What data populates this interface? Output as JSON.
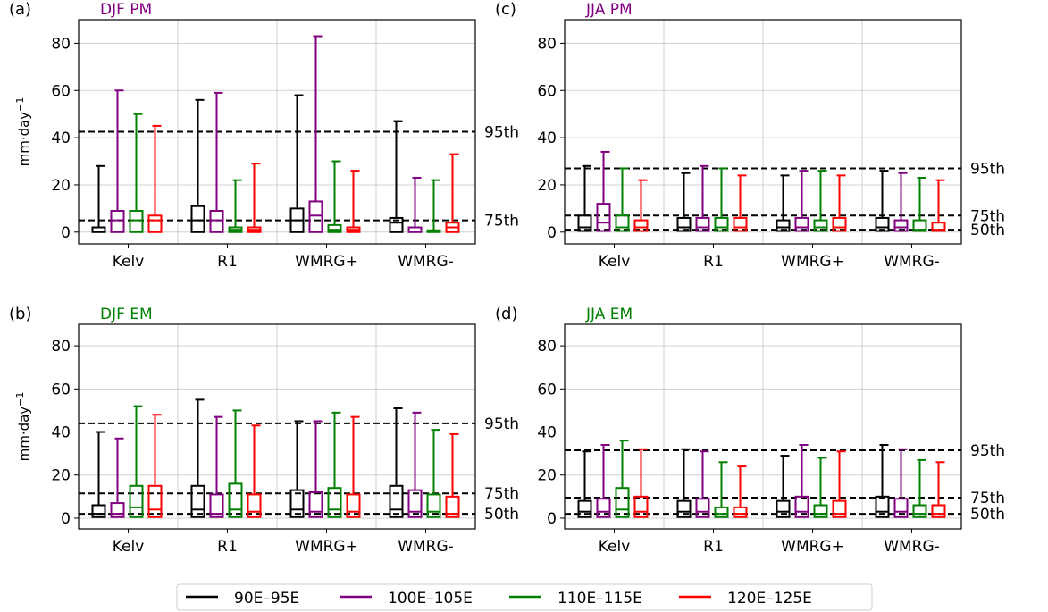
{
  "figure": {
    "ylabel": "mm·day",
    "ylabel_sup": "−1",
    "colors": {
      "90E–95E": "#000000",
      "100E–105E": "#800080",
      "110E–115E": "#008000",
      "120E–125E": "#ff0000"
    },
    "legend": {
      "placement": "bottom-center",
      "entries": [
        "90E–95E",
        "100E–105E",
        "110E–115E",
        "120E–125E"
      ]
    }
  },
  "chart_data": [
    {
      "type": "boxplot",
      "panel_label": "(a)",
      "title": "DJF PM",
      "title_color": "#800080",
      "categories": [
        "Kelv",
        "R1",
        "WMRG+",
        "WMRG-"
      ],
      "ylim": [
        -5,
        90
      ],
      "yticks": [
        0,
        20,
        40,
        60,
        80
      ],
      "grid": true,
      "reference_lines": [
        {
          "label": "95th",
          "value": 42.5
        },
        {
          "label": "75th",
          "value": 5
        }
      ],
      "series": [
        {
          "name": "90E–95E",
          "q1": [
            0,
            0,
            0,
            0
          ],
          "median": [
            2,
            5,
            5,
            4
          ],
          "q3": [
            2,
            11,
            10,
            6
          ],
          "whisker": [
            28,
            56,
            58,
            47
          ]
        },
        {
          "name": "100E–105E",
          "q1": [
            0,
            0,
            0,
            0
          ],
          "median": [
            5,
            5,
            7,
            2
          ],
          "q3": [
            9,
            9,
            13,
            2
          ],
          "whisker": [
            60,
            59,
            83,
            23
          ]
        },
        {
          "name": "110E–115E",
          "q1": [
            0,
            0,
            0,
            0
          ],
          "median": [
            5,
            1,
            1,
            0.5
          ],
          "q3": [
            9,
            2,
            3,
            0.5
          ],
          "whisker": [
            50,
            22,
            30,
            22
          ]
        },
        {
          "name": "120E–125E",
          "q1": [
            0,
            0,
            0,
            0
          ],
          "median": [
            5,
            1,
            1,
            2
          ],
          "q3": [
            7,
            2,
            2,
            4
          ],
          "whisker": [
            45,
            29,
            26,
            33
          ]
        }
      ]
    },
    {
      "type": "boxplot",
      "panel_label": "(b)",
      "title": "DJF EM",
      "title_color": "#008000",
      "categories": [
        "Kelv",
        "R1",
        "WMRG+",
        "WMRG-"
      ],
      "ylim": [
        -5,
        90
      ],
      "yticks": [
        0,
        20,
        40,
        60,
        80
      ],
      "grid": true,
      "reference_lines": [
        {
          "label": "95th",
          "value": 44
        },
        {
          "label": "75th",
          "value": 11.5
        },
        {
          "label": "50th",
          "value": 2
        }
      ],
      "series": [
        {
          "name": "90E–95E",
          "q1": [
            0.5,
            0.5,
            0.5,
            0.5
          ],
          "median": [
            2,
            4,
            4,
            4
          ],
          "q3": [
            6,
            15,
            13,
            15
          ],
          "whisker": [
            40,
            55,
            45,
            51
          ]
        },
        {
          "name": "100E–105E",
          "q1": [
            0.5,
            0.5,
            0.5,
            0.5
          ],
          "median": [
            2,
            2,
            3,
            3
          ],
          "q3": [
            7,
            11,
            12,
            13
          ],
          "whisker": [
            37,
            47,
            45,
            49
          ]
        },
        {
          "name": "110E–115E",
          "q1": [
            0.5,
            0.5,
            0.5,
            0.5
          ],
          "median": [
            5,
            4,
            4,
            3
          ],
          "q3": [
            15,
            16,
            14,
            11
          ],
          "whisker": [
            52,
            50,
            49,
            41
          ]
        },
        {
          "name": "120E–125E",
          "q1": [
            0.5,
            0.5,
            0.5,
            0.5
          ],
          "median": [
            4,
            3,
            3,
            2
          ],
          "q3": [
            15,
            11,
            11,
            10
          ],
          "whisker": [
            48,
            43,
            47,
            39
          ]
        }
      ]
    },
    {
      "type": "boxplot",
      "panel_label": "(c)",
      "title": "JJA PM",
      "title_color": "#800080",
      "categories": [
        "Kelv",
        "R1",
        "WMRG+",
        "WMRG-"
      ],
      "ylim": [
        -5,
        90
      ],
      "yticks": [
        0,
        20,
        40,
        60,
        80
      ],
      "grid": true,
      "reference_lines": [
        {
          "label": "95th",
          "value": 27
        },
        {
          "label": "75th",
          "value": 7
        },
        {
          "label": "50th",
          "value": 1
        }
      ],
      "series": [
        {
          "name": "90E–95E",
          "q1": [
            0.5,
            0.5,
            0.5,
            0.5
          ],
          "median": [
            2,
            2,
            2,
            2
          ],
          "q3": [
            7,
            6,
            5,
            6
          ],
          "whisker": [
            28,
            25,
            24,
            26
          ]
        },
        {
          "name": "100E–105E",
          "q1": [
            0.5,
            0.5,
            0.5,
            0.5
          ],
          "median": [
            4,
            2,
            2,
            2
          ],
          "q3": [
            12,
            6,
            6,
            5
          ],
          "whisker": [
            34,
            28,
            26,
            25
          ]
        },
        {
          "name": "110E–115E",
          "q1": [
            0.5,
            0.5,
            0.5,
            0.5
          ],
          "median": [
            2,
            2,
            2,
            1
          ],
          "q3": [
            7,
            6,
            5,
            5
          ],
          "whisker": [
            27,
            27,
            26,
            23
          ]
        },
        {
          "name": "120E–125E",
          "q1": [
            0.5,
            0.5,
            0.5,
            0.5
          ],
          "median": [
            2,
            2,
            2,
            1
          ],
          "q3": [
            5,
            6,
            6,
            4
          ],
          "whisker": [
            22,
            24,
            24,
            22
          ]
        }
      ]
    },
    {
      "type": "boxplot",
      "panel_label": "(d)",
      "title": "JJA EM",
      "title_color": "#008000",
      "categories": [
        "Kelv",
        "R1",
        "WMRG+",
        "WMRG-"
      ],
      "ylim": [
        -5,
        90
      ],
      "yticks": [
        0,
        20,
        40,
        60,
        80
      ],
      "grid": true,
      "reference_lines": [
        {
          "label": "95th",
          "value": 31.5
        },
        {
          "label": "75th",
          "value": 9.5
        },
        {
          "label": "50th",
          "value": 2
        }
      ],
      "series": [
        {
          "name": "90E–95E",
          "q1": [
            0.5,
            0.5,
            0.5,
            0.5
          ],
          "median": [
            3,
            3,
            3,
            3
          ],
          "q3": [
            8,
            8,
            8,
            10
          ],
          "whisker": [
            31,
            32,
            29,
            34
          ]
        },
        {
          "name": "100E–105E",
          "q1": [
            0.5,
            0.5,
            0.5,
            0.5
          ],
          "median": [
            3,
            3,
            3,
            3
          ],
          "q3": [
            9,
            9,
            10,
            9
          ],
          "whisker": [
            34,
            31,
            34,
            32
          ]
        },
        {
          "name": "110E–115E",
          "q1": [
            0.5,
            0.5,
            0.5,
            0.5
          ],
          "median": [
            4,
            2,
            2,
            2
          ],
          "q3": [
            14,
            5,
            6,
            6
          ],
          "whisker": [
            36,
            26,
            28,
            27
          ]
        },
        {
          "name": "120E–125E",
          "q1": [
            0.5,
            0.5,
            0.5,
            0.5
          ],
          "median": [
            3,
            2,
            2,
            2
          ],
          "q3": [
            10,
            5,
            8,
            6
          ],
          "whisker": [
            32,
            24,
            31,
            26
          ]
        }
      ]
    }
  ]
}
